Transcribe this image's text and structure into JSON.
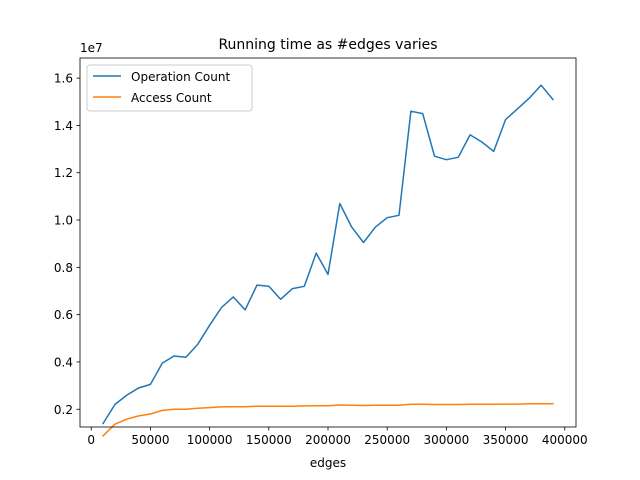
{
  "chart_data": {
    "type": "line",
    "title": "Running time as #edges varies",
    "xlabel": "edges",
    "ylabel": "",
    "y_offset_label": "1e7",
    "xlim": [
      -9500,
      409500
    ],
    "ylim": [
      0.125,
      1.685
    ],
    "xticks": [
      0,
      50000,
      100000,
      150000,
      200000,
      250000,
      300000,
      350000,
      400000
    ],
    "yticks": [
      0.2,
      0.4,
      0.6,
      0.8,
      1.0,
      1.2,
      1.4,
      1.6
    ],
    "ytick_labels": [
      "0.2",
      "0.4",
      "0.6",
      "0.8",
      "1.0",
      "1.2",
      "1.4",
      "1.6"
    ],
    "grid": false,
    "legend_position": "top-left",
    "x": [
      10000,
      20000,
      30000,
      40000,
      50000,
      60000,
      70000,
      80000,
      90000,
      100000,
      110000,
      120000,
      130000,
      140000,
      150000,
      160000,
      170000,
      180000,
      190000,
      200000,
      210000,
      220000,
      230000,
      240000,
      250000,
      260000,
      270000,
      280000,
      290000,
      300000,
      310000,
      320000,
      330000,
      340000,
      350000,
      360000,
      370000,
      380000,
      390000
    ],
    "series": [
      {
        "name": "Operation Count",
        "color": "#1f77b4",
        "values": [
          0.14,
          0.22,
          0.26,
          0.29,
          0.305,
          0.395,
          0.425,
          0.42,
          0.475,
          0.555,
          0.63,
          0.675,
          0.62,
          0.725,
          0.72,
          0.665,
          0.71,
          0.72,
          0.86,
          0.77,
          1.07,
          0.97,
          0.905,
          0.97,
          1.01,
          1.02,
          1.46,
          1.45,
          1.27,
          1.255,
          1.265,
          1.36,
          1.33,
          1.29,
          1.425,
          1.47,
          1.515,
          1.57,
          1.51
        ]
      },
      {
        "name": "Access Count",
        "color": "#ff7f0e",
        "values": [
          0.088,
          0.137,
          0.158,
          0.172,
          0.18,
          0.195,
          0.2,
          0.2,
          0.204,
          0.207,
          0.21,
          0.211,
          0.211,
          0.213,
          0.213,
          0.213,
          0.213,
          0.214,
          0.215,
          0.215,
          0.218,
          0.217,
          0.216,
          0.217,
          0.217,
          0.217,
          0.221,
          0.221,
          0.22,
          0.22,
          0.22,
          0.221,
          0.221,
          0.221,
          0.222,
          0.222,
          0.223,
          0.223,
          0.223
        ]
      }
    ]
  }
}
